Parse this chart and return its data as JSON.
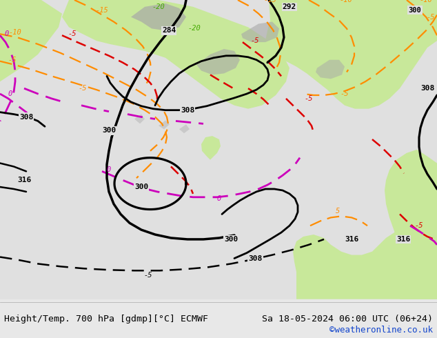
{
  "title_left": "Height/Temp. 700 hPa [gdmp][°C] ECMWF",
  "title_right": "Sa 18-05-2024 06:00 UTC (06+24)",
  "credit": "©weatheronline.co.uk",
  "bg_color": "#e8e8e8",
  "map_bg": "#e0e0e0",
  "light_green": "#c8e89a",
  "gray_terrain": "#a8a8a8",
  "ocean_white": "#dcdcdc",
  "black": "#000000",
  "orange": "#ff8c00",
  "red": "#dd0000",
  "magenta": "#cc00bb",
  "green_label": "#44aa00",
  "footer_text": "#000000",
  "credit_color": "#1144cc",
  "fig_width": 6.34,
  "fig_height": 4.9,
  "dpi": 100
}
